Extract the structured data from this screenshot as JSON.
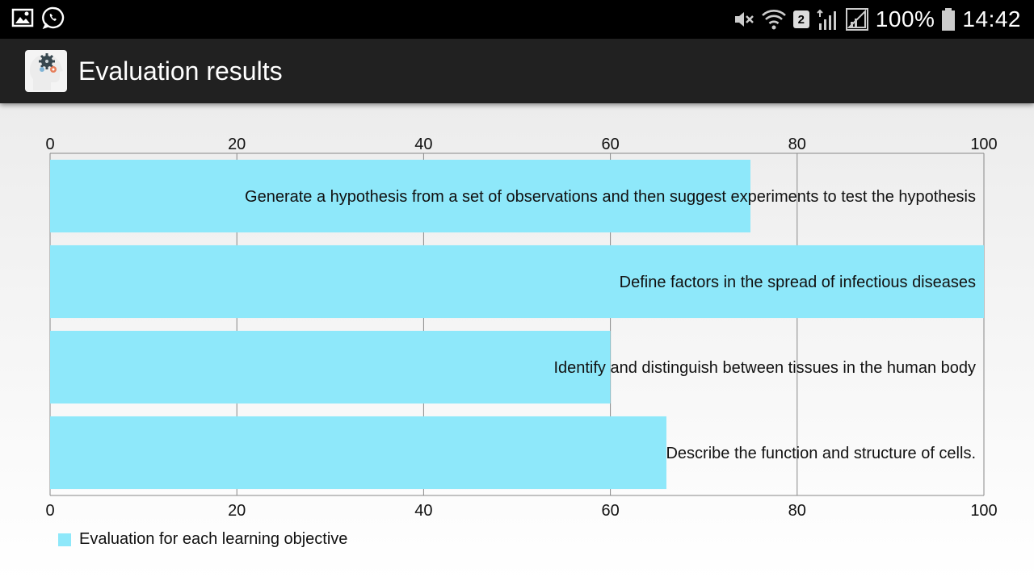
{
  "status_bar": {
    "badge": "2",
    "battery": "100%",
    "time": "14:42",
    "icons": [
      "gallery-icon",
      "whatsapp-icon",
      "mute-icon",
      "wifi-icon",
      "sim-badge-icon",
      "data-signal-icon",
      "signal-icon",
      "battery-icon"
    ]
  },
  "app_bar": {
    "title": "Evaluation results",
    "icon": "brain-gears-icon"
  },
  "colors": {
    "bar": "#8ee8fa",
    "grid": "#888888",
    "text": "#111111"
  },
  "chart_data": {
    "type": "bar",
    "orientation": "horizontal",
    "categories": [
      "Generate a hypothesis from a set of observations and then suggest experiments to test the hypothesis",
      "Define factors in the spread of infectious diseases",
      "Identify and distinguish between tissues in the human body",
      "Describe the function and structure of cells."
    ],
    "values": [
      75,
      100,
      60,
      66
    ],
    "xlim": [
      0,
      100
    ],
    "ticks": [
      "0",
      "20",
      "40",
      "60",
      "80",
      "100"
    ],
    "tick_values": [
      0,
      20,
      40,
      60,
      80,
      100
    ],
    "grid": true,
    "legend": {
      "label": "Evaluation for each learning objective",
      "position": "bottom-left"
    }
  }
}
